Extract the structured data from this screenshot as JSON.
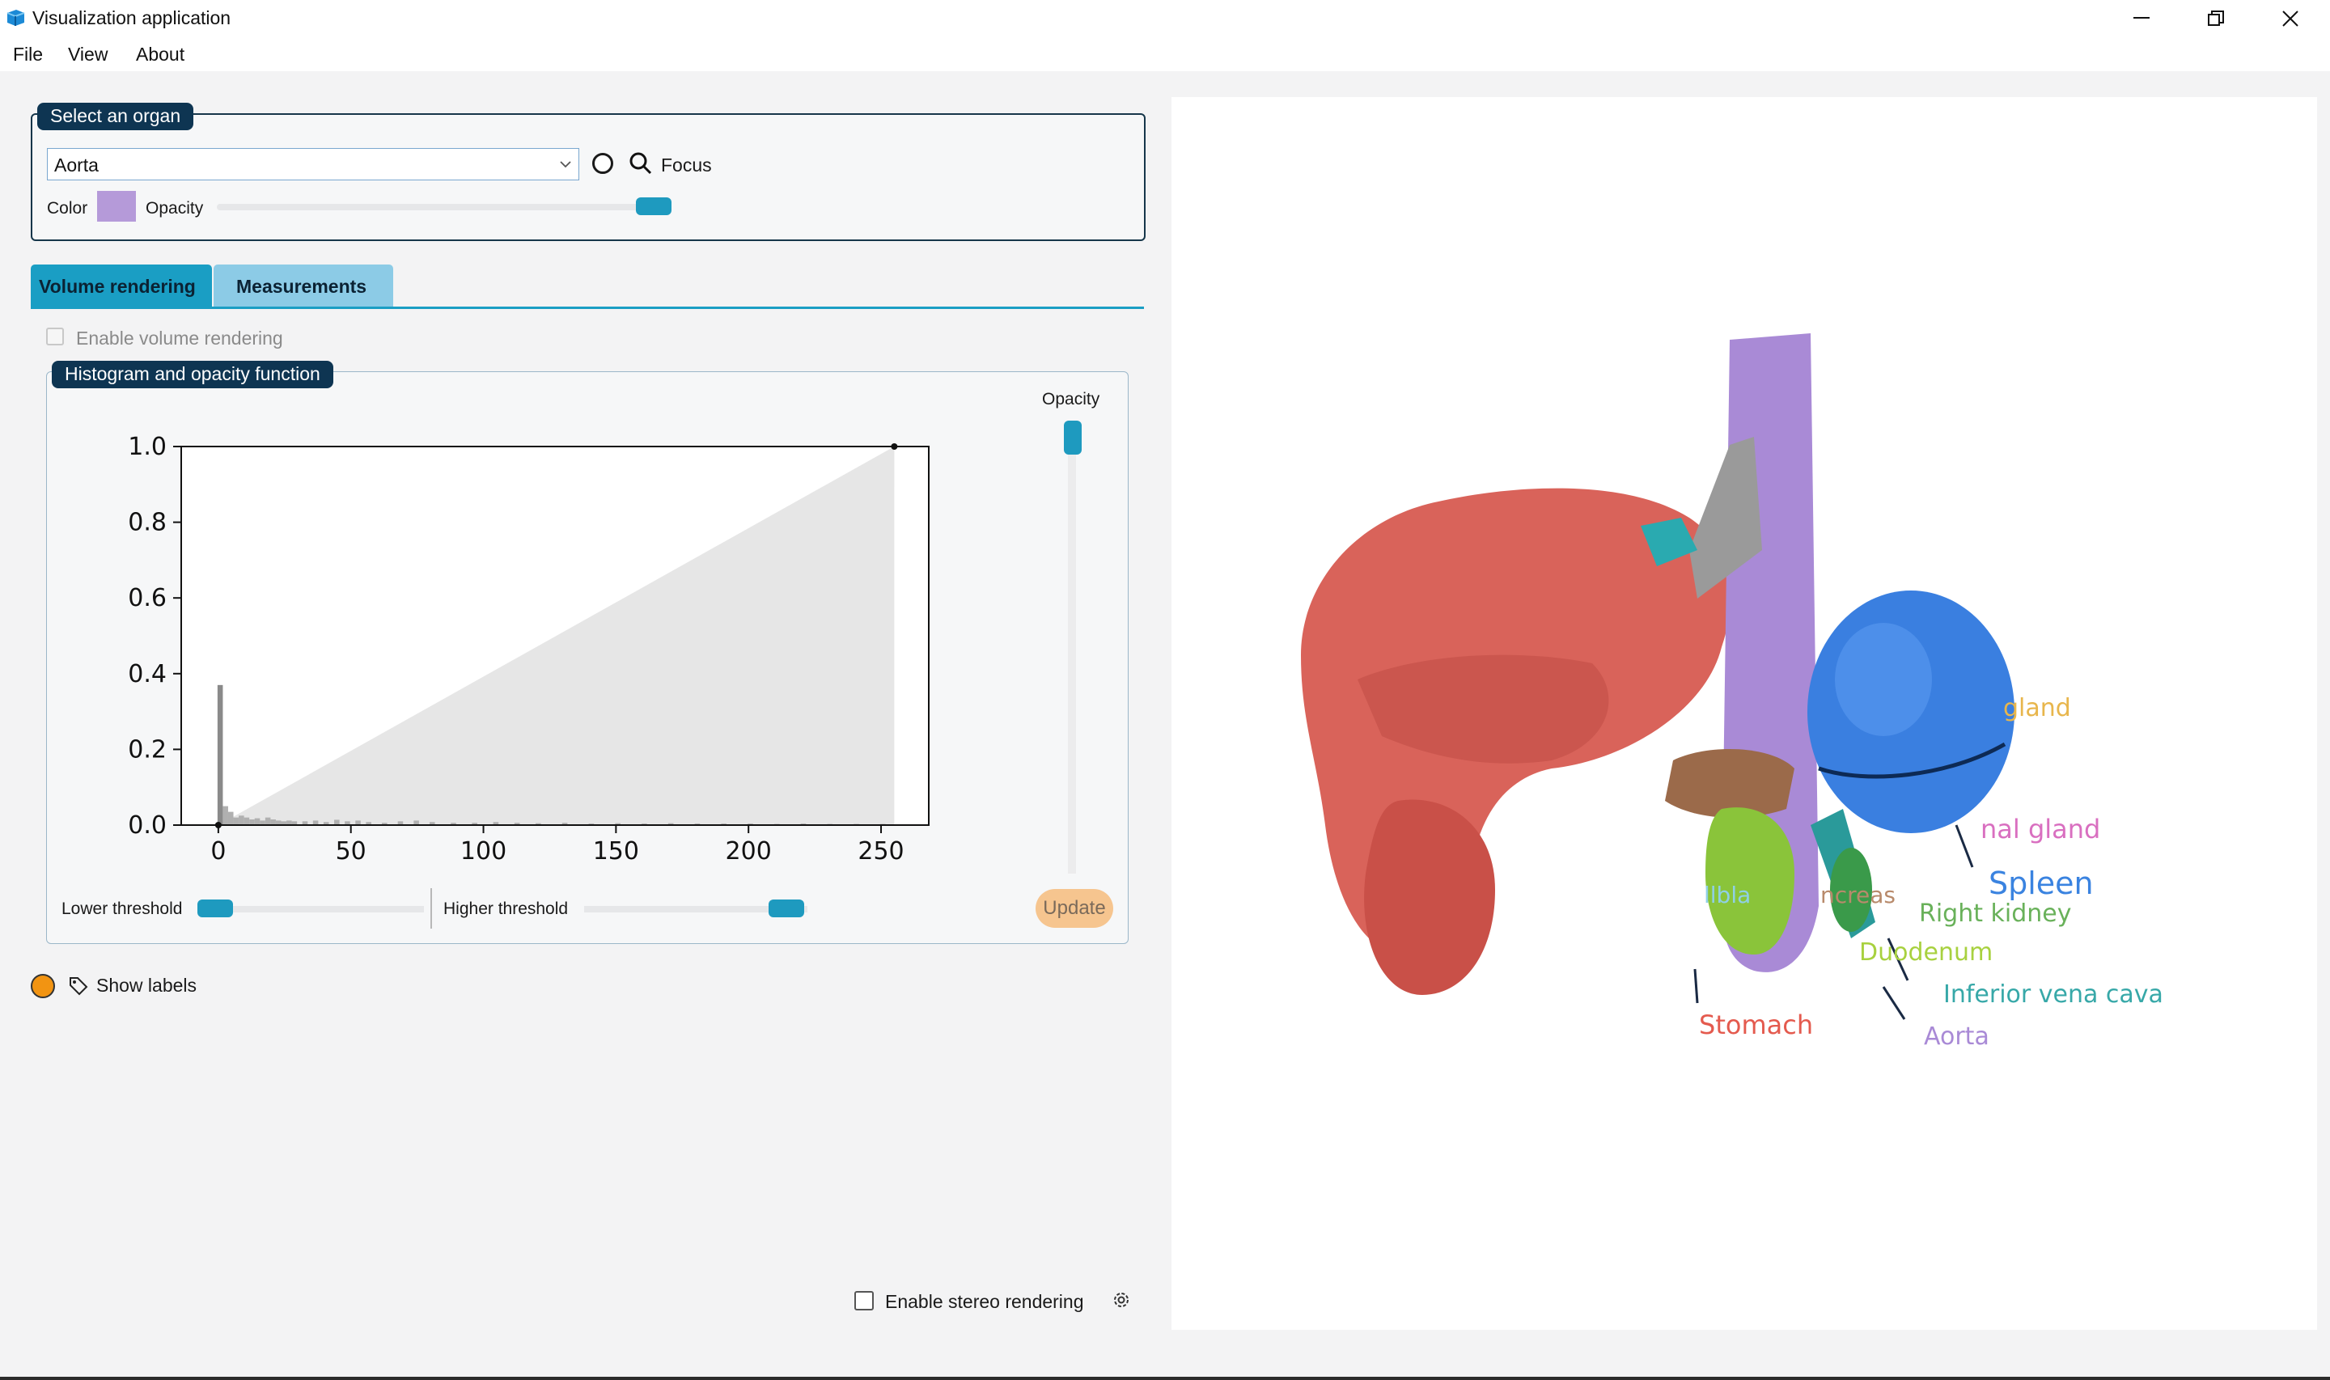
{
  "window": {
    "title": "Visualization application"
  },
  "menu": {
    "file": "File",
    "view": "View",
    "about": "About"
  },
  "organ_panel": {
    "title": "Select an organ",
    "selected_organ": "Aorta",
    "focus_label": "Focus",
    "color_label": "Color",
    "organ_color": "#b59ad9",
    "opacity_label": "Opacity",
    "opacity_value": 1.0
  },
  "tabs": {
    "volume": "Volume rendering",
    "measurements": "Measurements",
    "active": "Volume rendering"
  },
  "volume": {
    "enable_label": "Enable volume rendering",
    "enabled": false,
    "histogram_title": "Histogram and opacity function",
    "opacity_slider_label": "Opacity",
    "lower_threshold_label": "Lower threshold",
    "higher_threshold_label": "Higher threshold",
    "lower_threshold_value": 0,
    "higher_threshold_value": 255,
    "update_label": "Update"
  },
  "chart_data": {
    "type": "bar",
    "xlim": [
      -14,
      268
    ],
    "ylim": [
      0,
      1.0
    ],
    "xticks": [
      0,
      50,
      100,
      150,
      200,
      250
    ],
    "xtick_labels": [
      "0",
      "50",
      "100",
      "150",
      "200",
      "250"
    ],
    "yticks": [
      0.0,
      0.2,
      0.4,
      0.6,
      0.8,
      1.0
    ],
    "ytick_labels": [
      "0.0",
      "0.2",
      "0.4",
      "0.6",
      "0.8",
      "1.0"
    ],
    "opacity_function": [
      [
        0,
        0.0
      ],
      [
        255,
        1.0
      ]
    ],
    "histogram": {
      "x": [
        0,
        2,
        4,
        6,
        8,
        10,
        12,
        14,
        16,
        18,
        20,
        22,
        24,
        26,
        28,
        32,
        36,
        40,
        44,
        48,
        52,
        56,
        62,
        68,
        74,
        80,
        88,
        96,
        104,
        112,
        120,
        130,
        140,
        150,
        160,
        170,
        180,
        190,
        200,
        210,
        220,
        230,
        240,
        250
      ],
      "values": [
        0.37,
        0.05,
        0.035,
        0.02,
        0.025,
        0.02,
        0.015,
        0.018,
        0.012,
        0.02,
        0.015,
        0.012,
        0.01,
        0.012,
        0.01,
        0.01,
        0.012,
        0.008,
        0.014,
        0.01,
        0.012,
        0.008,
        0.006,
        0.01,
        0.012,
        0.008,
        0.006,
        0.006,
        0.008,
        0.006,
        0.005,
        0.006,
        0.004,
        0.005,
        0.004,
        0.005,
        0.004,
        0.004,
        0.004,
        0.003,
        0.004,
        0.003,
        0.003,
        0.003
      ]
    }
  },
  "labels": {
    "show_labels": "Show labels"
  },
  "stereo": {
    "label": "Enable stereo rendering",
    "enabled": false
  },
  "scene": {
    "labels": [
      {
        "text": "gland",
        "color": "#e8b64c"
      },
      {
        "text": "nal gland",
        "color": "#d96fc0"
      },
      {
        "text": "Spleen",
        "color": "#3a83e0"
      },
      {
        "text": "llbla",
        "color": "#8fd0e6"
      },
      {
        "text": "ncreas",
        "color": "#b88a6b"
      },
      {
        "text": "Right kidney",
        "color": "#69b15a"
      },
      {
        "text": "Duodenum",
        "color": "#a8d13f"
      },
      {
        "text": "Inferior vena cava",
        "color": "#37a8a8"
      },
      {
        "text": "Stomach",
        "color": "#e45a4e"
      },
      {
        "text": "Aorta",
        "color": "#a98ad6"
      }
    ]
  }
}
